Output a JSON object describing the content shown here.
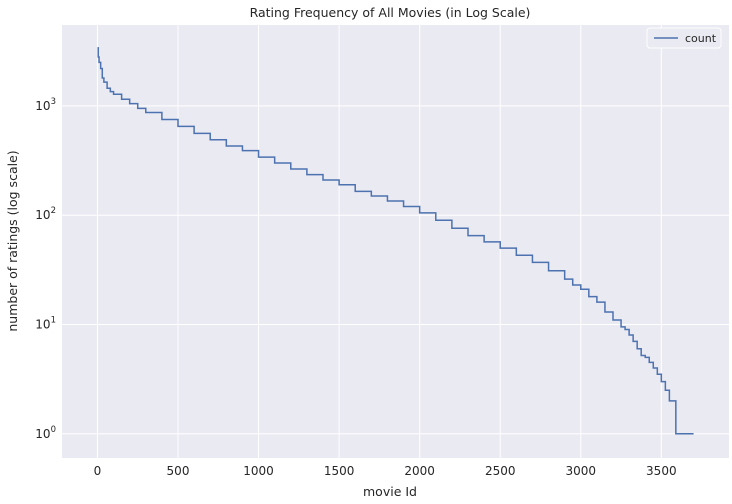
{
  "chart_data": {
    "type": "line",
    "title": "Rating Frequency of All Movies (in Log Scale)",
    "xlabel": "movie Id",
    "ylabel": "number of ratings (log scale)",
    "xlim": [
      -220,
      3920
    ],
    "ylim": [
      0.6,
      5500
    ],
    "y_scale": "log",
    "x_ticks": [
      0,
      500,
      1000,
      1500,
      2000,
      2500,
      3000,
      3500
    ],
    "y_ticks": [
      1,
      10,
      100,
      1000
    ],
    "y_tick_base": "10",
    "y_tick_exponents": [
      "0",
      "1",
      "2",
      "3"
    ],
    "grid": true,
    "background": "#EAEAF2",
    "line_color": "#4C72B0",
    "legend": {
      "position": "top-right",
      "entries": [
        "count"
      ]
    },
    "series": [
      {
        "name": "count",
        "x": [
          0,
          5,
          10,
          20,
          30,
          40,
          60,
          80,
          100,
          150,
          200,
          250,
          300,
          400,
          500,
          600,
          700,
          800,
          900,
          1000,
          1100,
          1200,
          1300,
          1400,
          1500,
          1600,
          1700,
          1800,
          1900,
          2000,
          2100,
          2200,
          2300,
          2400,
          2500,
          2600,
          2700,
          2800,
          2900,
          2950,
          3000,
          3050,
          3100,
          3150,
          3200,
          3250,
          3275,
          3300,
          3325,
          3350,
          3375,
          3400,
          3425,
          3450,
          3475,
          3500,
          3525,
          3550,
          3590,
          3700
        ],
        "y": [
          3400,
          2800,
          2500,
          2200,
          1800,
          1650,
          1450,
          1350,
          1280,
          1150,
          1050,
          950,
          870,
          750,
          650,
          560,
          490,
          430,
          390,
          340,
          300,
          265,
          235,
          210,
          190,
          165,
          150,
          135,
          120,
          105,
          90,
          76,
          65,
          57,
          50,
          43,
          37,
          31,
          26,
          23,
          21,
          18,
          16,
          13,
          11,
          9.5,
          9,
          8,
          7,
          6,
          5.2,
          5,
          4.5,
          4,
          3.5,
          3,
          2.5,
          2,
          1,
          1
        ]
      }
    ]
  }
}
